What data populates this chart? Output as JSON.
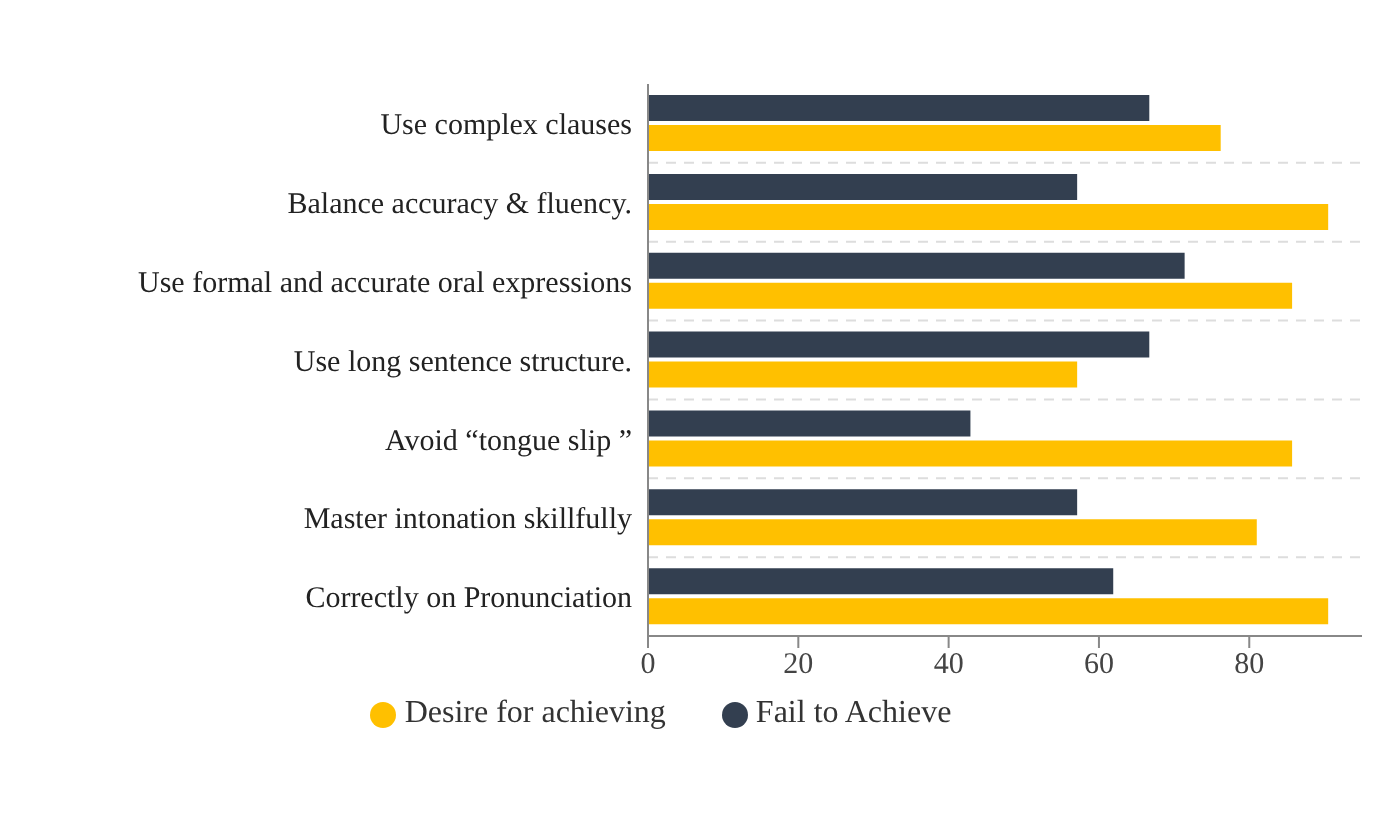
{
  "chart_data": {
    "type": "bar",
    "orientation": "horizontal",
    "categories": [
      "Use complex clauses",
      "Balance accuracy & fluency.",
      "Use formal and accurate oral expressions",
      "Use long sentence structure.",
      "Avoid “tongue slip ”",
      "Master intonation skillfully",
      "Correctly on Pronunciation"
    ],
    "series": [
      {
        "name": "Desire for achieving",
        "color": "#ffc000",
        "values": [
          76.2,
          90.5,
          85.7,
          57.1,
          85.7,
          81,
          90.5
        ]
      },
      {
        "name": "Fail to Achieve",
        "color": "#333f50",
        "values": [
          66.7,
          57.1,
          71.4,
          66.7,
          42.9,
          57.1,
          61.9
        ]
      }
    ],
    "xlim": [
      0,
      95
    ],
    "xticks": [
      0,
      20,
      40,
      60,
      80
    ],
    "grid": "y",
    "legend": "bottom"
  }
}
